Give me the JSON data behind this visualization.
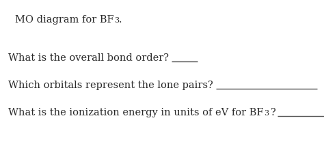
{
  "background_color": "#ffffff",
  "font_family": "DejaVu Serif",
  "font_size": 10.5,
  "font_size_sub": 8,
  "text_color": "#2a2a2a",
  "line_color": "#555555",
  "line_width": 1.0,
  "title": "MO diagram for BF",
  "title_sub": "3",
  "title_dot": ".",
  "q1": "What is the overall bond order?",
  "q2": "Which orbitals represent the lone pairs?",
  "q3a": "What is the ionization energy in units of eV for BF",
  "q3b": "3",
  "q3c": "?"
}
